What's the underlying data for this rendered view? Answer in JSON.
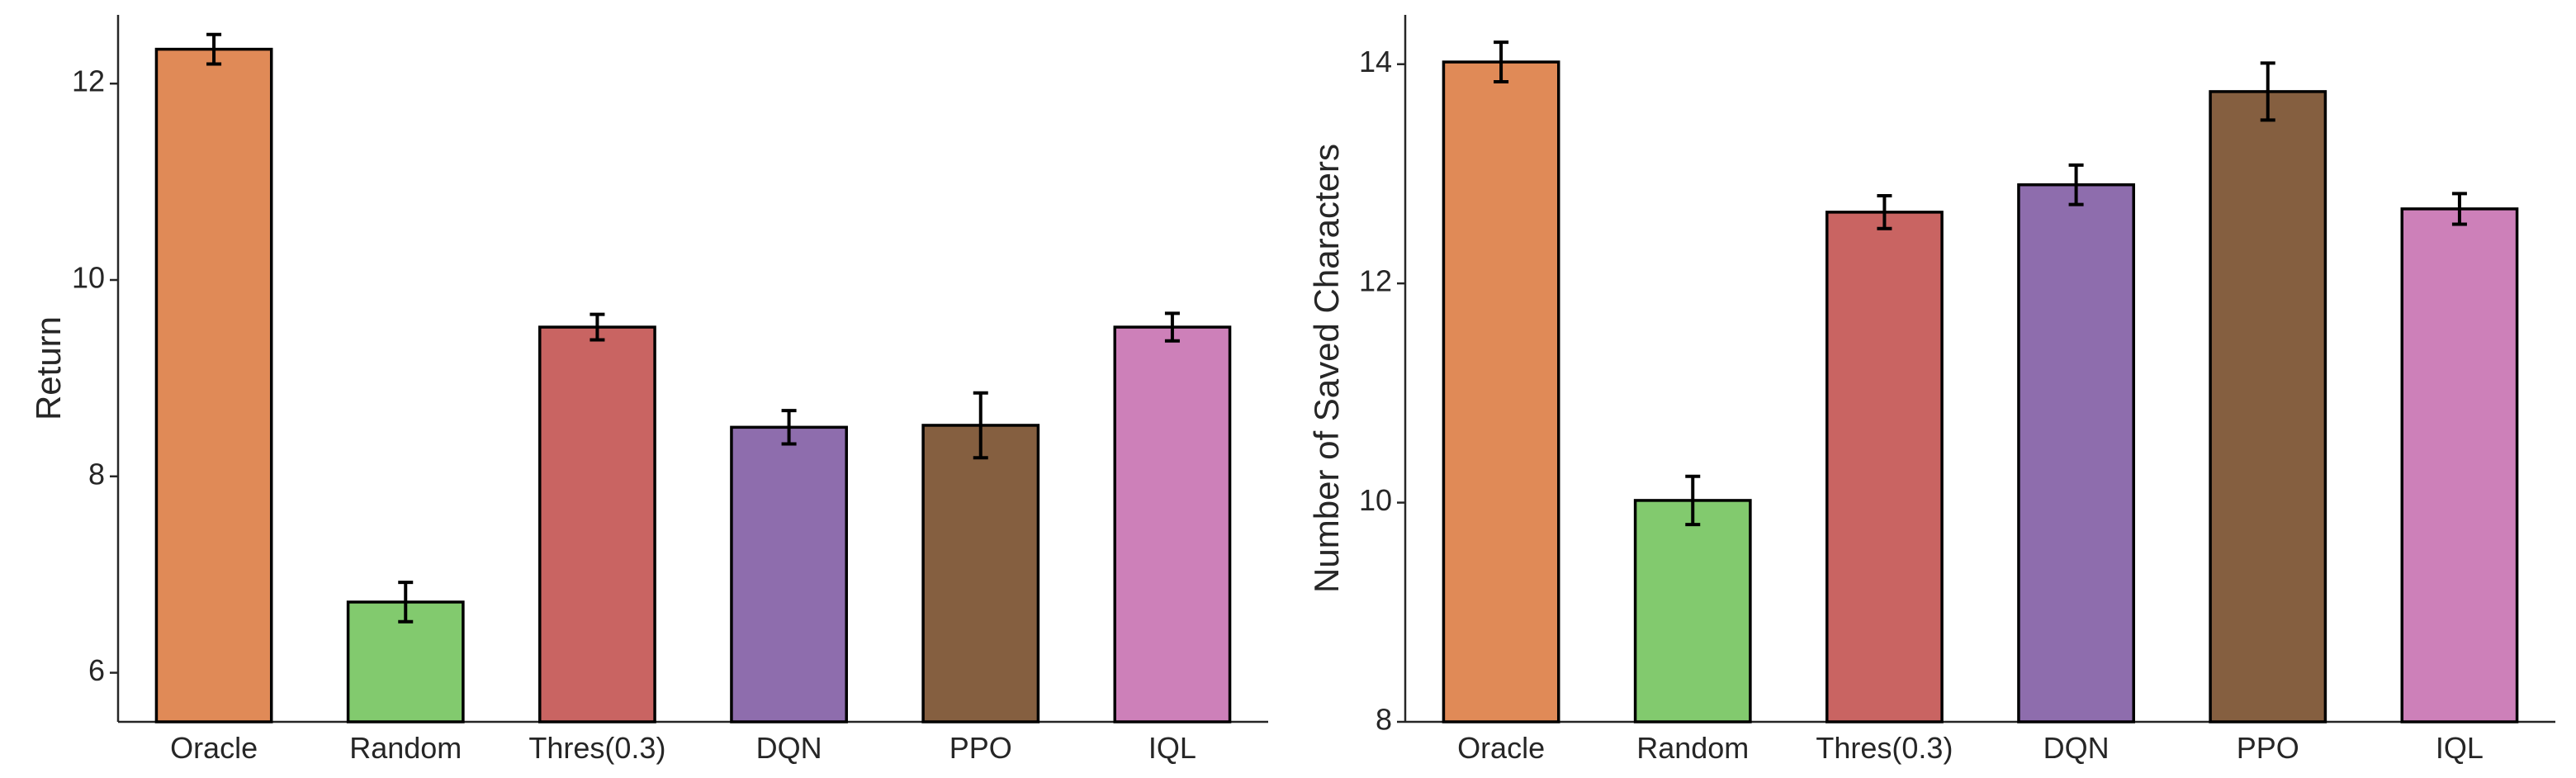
{
  "chart_data": [
    {
      "type": "bar",
      "title": "",
      "xlabel": "",
      "ylabel": "Return",
      "ylim": [
        5.5,
        12.7
      ],
      "yticks": [
        6,
        8,
        10,
        12
      ],
      "categories": [
        "Oracle",
        "Random",
        "Thres(0.3)",
        "DQN",
        "PPO",
        "IQL"
      ],
      "values": [
        12.35,
        6.72,
        9.52,
        8.5,
        8.52,
        9.52
      ],
      "errors": [
        0.15,
        0.2,
        0.13,
        0.17,
        0.33,
        0.14
      ],
      "colors": [
        "#E08A57",
        "#82CA6E",
        "#C96462",
        "#8E6DAD",
        "#855F40",
        "#CD80B9"
      ]
    },
    {
      "type": "bar",
      "title": "",
      "xlabel": "",
      "ylabel": "Number of Saved Characters",
      "ylim": [
        8,
        14.45
      ],
      "yticks": [
        8,
        10,
        12,
        14
      ],
      "categories": [
        "Oracle",
        "Random",
        "Thres(0.3)",
        "DQN",
        "PPO",
        "IQL"
      ],
      "values": [
        14.02,
        10.02,
        12.65,
        12.9,
        13.75,
        12.68
      ],
      "errors": [
        0.18,
        0.22,
        0.15,
        0.18,
        0.26,
        0.14
      ],
      "colors": [
        "#E08A57",
        "#82CA6E",
        "#C96462",
        "#8E6DAD",
        "#855F40",
        "#CD80B9"
      ]
    }
  ]
}
